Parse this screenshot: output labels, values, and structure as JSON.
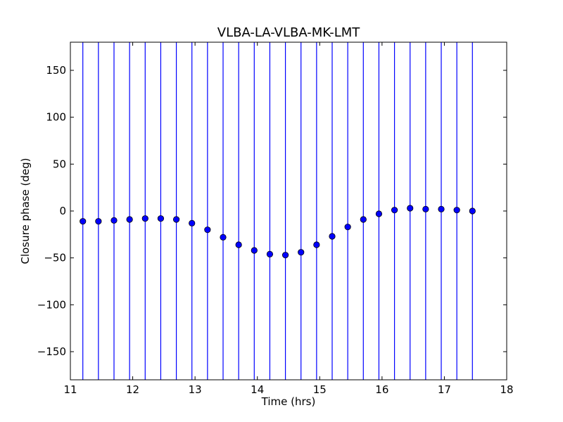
{
  "chart_data": {
    "type": "scatter",
    "title": "VLBA-LA-VLBA-MK-LMT",
    "xlabel": "Time (hrs)",
    "ylabel": "Closure phase (deg)",
    "xlim": [
      11,
      18
    ],
    "ylim": [
      -180,
      180
    ],
    "xticks": [
      11,
      12,
      13,
      14,
      15,
      16,
      17,
      18
    ],
    "yticks": [
      -150,
      -100,
      -50,
      0,
      50,
      100,
      150
    ],
    "xtick_labels": [
      "11",
      "12",
      "13",
      "14",
      "15",
      "16",
      "17",
      "18"
    ],
    "ytick_labels": [
      "−150",
      "−100",
      "−50",
      "0",
      "50",
      "100",
      "150"
    ],
    "grid": false,
    "marker_color": "#0000ff",
    "errorbar_color": "#0000ff",
    "errorbars": "full-range",
    "points": [
      {
        "x": 11.2,
        "y": -11
      },
      {
        "x": 11.45,
        "y": -11
      },
      {
        "x": 11.7,
        "y": -10
      },
      {
        "x": 11.95,
        "y": -9
      },
      {
        "x": 12.2,
        "y": -8
      },
      {
        "x": 12.45,
        "y": -8
      },
      {
        "x": 12.7,
        "y": -9
      },
      {
        "x": 12.95,
        "y": -13
      },
      {
        "x": 13.2,
        "y": -20
      },
      {
        "x": 13.45,
        "y": -28
      },
      {
        "x": 13.7,
        "y": -36
      },
      {
        "x": 13.95,
        "y": -42
      },
      {
        "x": 14.2,
        "y": -46
      },
      {
        "x": 14.45,
        "y": -47
      },
      {
        "x": 14.7,
        "y": -44
      },
      {
        "x": 14.95,
        "y": -36
      },
      {
        "x": 15.2,
        "y": -27
      },
      {
        "x": 15.45,
        "y": -17
      },
      {
        "x": 15.7,
        "y": -9
      },
      {
        "x": 15.95,
        "y": -3
      },
      {
        "x": 16.2,
        "y": 1
      },
      {
        "x": 16.45,
        "y": 3
      },
      {
        "x": 16.7,
        "y": 2
      },
      {
        "x": 16.95,
        "y": 2
      },
      {
        "x": 17.2,
        "y": 1
      },
      {
        "x": 17.45,
        "y": 0
      }
    ]
  }
}
